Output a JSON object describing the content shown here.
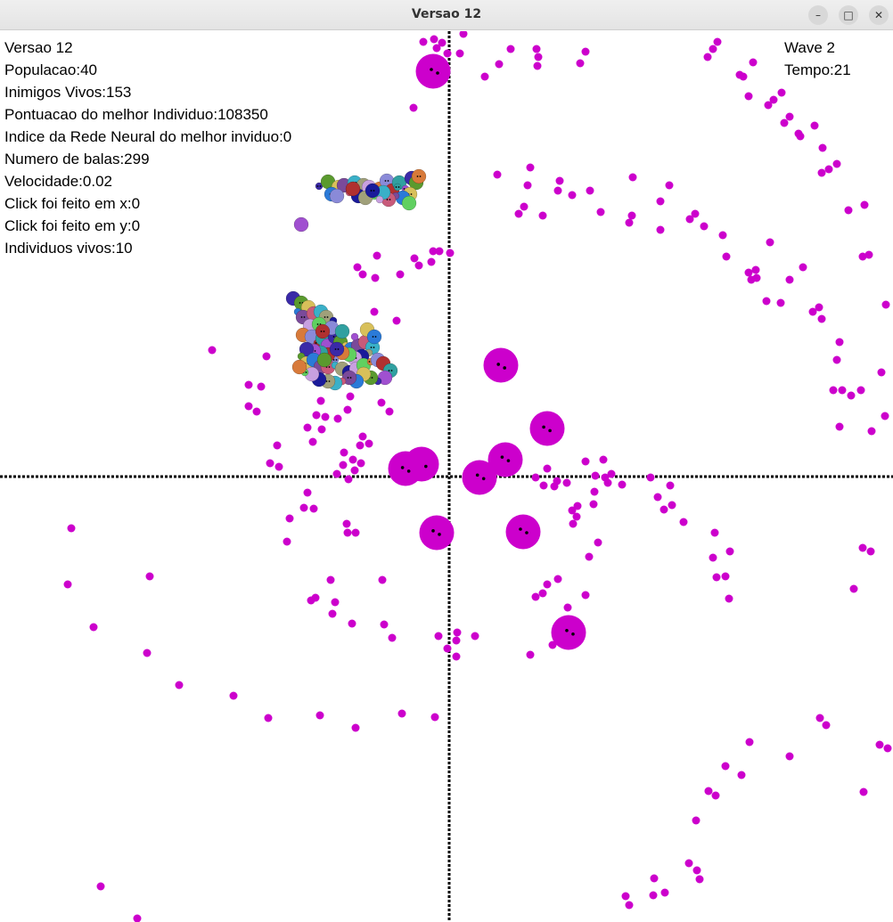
{
  "window": {
    "title": "Versao 12"
  },
  "hud_left": [
    "Versao 12",
    "Populacao:40",
    "Inimigos Vivos:153",
    "Pontuacao do melhor Individuo:108350",
    "Indice da Rede Neural do melhor inviduo:0",
    "Numero de balas:299",
    "Velocidade:0.02",
    "Click foi feito em x:0",
    "Click foi feito em y:0",
    "Individuos vivos:10"
  ],
  "hud_right": {
    "wave": "Wave 2",
    "tempo": "Tempo:21"
  },
  "colors": {
    "enemy": "#cc00cc",
    "axis": "#000000",
    "individuals": [
      "#3a2aa8",
      "#5a9a2e",
      "#d8c05a",
      "#2a7ad8",
      "#7a4a9a",
      "#c85a7a",
      "#3ab0c8",
      "#a0a07a",
      "#1a1a9a",
      "#c8a0e0",
      "#60d060",
      "#d87a3a",
      "#8a8ad8",
      "#b03030",
      "#30a0a0",
      "#a050d0"
    ]
  },
  "big_enemies": [
    [
      486,
      80
    ],
    [
      562,
      410
    ],
    [
      614,
      481
    ],
    [
      567,
      516
    ],
    [
      538,
      536
    ],
    [
      473,
      521
    ],
    [
      455,
      526
    ],
    [
      490,
      598
    ],
    [
      587,
      597
    ],
    [
      638,
      710
    ]
  ],
  "small_enemies": [
    [
      475,
      47
    ],
    [
      487,
      44
    ],
    [
      490,
      54
    ],
    [
      496,
      48
    ],
    [
      502,
      60
    ],
    [
      520,
      38
    ],
    [
      516,
      60
    ],
    [
      573,
      55
    ],
    [
      602,
      55
    ],
    [
      604,
      64
    ],
    [
      657,
      58
    ],
    [
      651,
      71
    ],
    [
      603,
      74
    ],
    [
      560,
      72
    ],
    [
      544,
      86
    ],
    [
      805,
      47
    ],
    [
      794,
      64
    ],
    [
      800,
      55
    ],
    [
      845,
      70
    ],
    [
      830,
      84
    ],
    [
      834,
      86
    ],
    [
      877,
      104
    ],
    [
      868,
      112
    ],
    [
      862,
      118
    ],
    [
      840,
      108
    ],
    [
      886,
      131
    ],
    [
      880,
      138
    ],
    [
      896,
      150
    ],
    [
      914,
      141
    ],
    [
      898,
      153
    ],
    [
      923,
      166
    ],
    [
      939,
      184
    ],
    [
      930,
      190
    ],
    [
      922,
      194
    ],
    [
      464,
      121
    ],
    [
      558,
      196
    ],
    [
      595,
      188
    ],
    [
      592,
      208
    ],
    [
      628,
      203
    ],
    [
      626,
      214
    ],
    [
      642,
      219
    ],
    [
      662,
      214
    ],
    [
      710,
      199
    ],
    [
      751,
      208
    ],
    [
      741,
      226
    ],
    [
      709,
      242
    ],
    [
      706,
      250
    ],
    [
      674,
      238
    ],
    [
      609,
      242
    ],
    [
      588,
      232
    ],
    [
      582,
      240
    ],
    [
      741,
      258
    ],
    [
      774,
      246
    ],
    [
      780,
      240
    ],
    [
      790,
      254
    ],
    [
      811,
      264
    ],
    [
      864,
      272
    ],
    [
      815,
      288
    ],
    [
      840,
      306
    ],
    [
      848,
      303
    ],
    [
      849,
      312
    ],
    [
      843,
      314
    ],
    [
      886,
      314
    ],
    [
      901,
      300
    ],
    [
      860,
      338
    ],
    [
      876,
      340
    ],
    [
      912,
      350
    ],
    [
      919,
      345
    ],
    [
      922,
      358
    ],
    [
      942,
      384
    ],
    [
      939,
      404
    ],
    [
      952,
      236
    ],
    [
      970,
      230
    ],
    [
      968,
      288
    ],
    [
      975,
      286
    ],
    [
      994,
      342
    ],
    [
      989,
      418
    ],
    [
      966,
      438
    ],
    [
      945,
      438
    ],
    [
      935,
      438
    ],
    [
      955,
      444
    ],
    [
      993,
      467
    ],
    [
      978,
      484
    ],
    [
      942,
      479
    ],
    [
      486,
      282
    ],
    [
      493,
      282
    ],
    [
      505,
      284
    ],
    [
      465,
      290
    ],
    [
      470,
      298
    ],
    [
      484,
      294
    ],
    [
      423,
      287
    ],
    [
      401,
      300
    ],
    [
      407,
      308
    ],
    [
      421,
      312
    ],
    [
      449,
      308
    ],
    [
      420,
      350
    ],
    [
      445,
      360
    ],
    [
      238,
      393
    ],
    [
      299,
      400
    ],
    [
      279,
      432
    ],
    [
      293,
      434
    ],
    [
      279,
      456
    ],
    [
      288,
      462
    ],
    [
      360,
      450
    ],
    [
      355,
      466
    ],
    [
      345,
      480
    ],
    [
      365,
      468
    ],
    [
      379,
      470
    ],
    [
      390,
      460
    ],
    [
      393,
      445
    ],
    [
      428,
      452
    ],
    [
      437,
      462
    ],
    [
      414,
      498
    ],
    [
      407,
      490
    ],
    [
      404,
      500
    ],
    [
      386,
      508
    ],
    [
      396,
      516
    ],
    [
      405,
      520
    ],
    [
      398,
      528
    ],
    [
      385,
      522
    ],
    [
      378,
      532
    ],
    [
      391,
      538
    ],
    [
      361,
      482
    ],
    [
      351,
      496
    ],
    [
      311,
      500
    ],
    [
      303,
      520
    ],
    [
      313,
      524
    ],
    [
      601,
      536
    ],
    [
      614,
      526
    ],
    [
      610,
      545
    ],
    [
      622,
      546
    ],
    [
      625,
      540
    ],
    [
      636,
      542
    ],
    [
      657,
      518
    ],
    [
      677,
      516
    ],
    [
      668,
      534
    ],
    [
      679,
      536
    ],
    [
      686,
      532
    ],
    [
      682,
      542
    ],
    [
      698,
      544
    ],
    [
      730,
      536
    ],
    [
      752,
      545
    ],
    [
      738,
      558
    ],
    [
      745,
      572
    ],
    [
      754,
      567
    ],
    [
      767,
      586
    ],
    [
      667,
      552
    ],
    [
      666,
      566
    ],
    [
      648,
      568
    ],
    [
      642,
      573
    ],
    [
      647,
      580
    ],
    [
      643,
      588
    ],
    [
      671,
      609
    ],
    [
      661,
      625
    ],
    [
      802,
      598
    ],
    [
      819,
      619
    ],
    [
      800,
      626
    ],
    [
      804,
      648
    ],
    [
      814,
      647
    ],
    [
      818,
      672
    ],
    [
      614,
      656
    ],
    [
      626,
      650
    ],
    [
      609,
      666
    ],
    [
      601,
      670
    ],
    [
      657,
      668
    ],
    [
      637,
      682
    ],
    [
      620,
      724
    ],
    [
      595,
      735
    ],
    [
      345,
      553
    ],
    [
      341,
      570
    ],
    [
      352,
      571
    ],
    [
      325,
      582
    ],
    [
      322,
      608
    ],
    [
      389,
      588
    ],
    [
      390,
      598
    ],
    [
      399,
      598
    ],
    [
      80,
      593
    ],
    [
      168,
      647
    ],
    [
      76,
      656
    ],
    [
      371,
      651
    ],
    [
      429,
      651
    ],
    [
      376,
      676
    ],
    [
      354,
      671
    ],
    [
      349,
      674
    ],
    [
      373,
      689
    ],
    [
      105,
      704
    ],
    [
      165,
      733
    ],
    [
      201,
      769
    ],
    [
      262,
      781
    ],
    [
      301,
      806
    ],
    [
      359,
      803
    ],
    [
      399,
      817
    ],
    [
      451,
      801
    ],
    [
      488,
      805
    ],
    [
      395,
      700
    ],
    [
      431,
      701
    ],
    [
      440,
      716
    ],
    [
      492,
      714
    ],
    [
      513,
      710
    ],
    [
      512,
      719
    ],
    [
      533,
      714
    ],
    [
      502,
      728
    ],
    [
      512,
      737
    ],
    [
      968,
      615
    ],
    [
      977,
      619
    ],
    [
      958,
      661
    ],
    [
      920,
      806
    ],
    [
      927,
      814
    ],
    [
      987,
      836
    ],
    [
      996,
      840
    ],
    [
      841,
      833
    ],
    [
      886,
      849
    ],
    [
      814,
      860
    ],
    [
      832,
      870
    ],
    [
      795,
      888
    ],
    [
      803,
      893
    ],
    [
      969,
      889
    ],
    [
      781,
      921
    ],
    [
      773,
      969
    ],
    [
      782,
      977
    ],
    [
      785,
      987
    ],
    [
      734,
      986
    ],
    [
      746,
      1002
    ],
    [
      733,
      1005
    ],
    [
      702,
      1006
    ],
    [
      706,
      1016
    ],
    [
      113,
      995
    ],
    [
      154,
      1031
    ]
  ],
  "cluster_top": [
    [
      358,
      209
    ],
    [
      368,
      204
    ],
    [
      380,
      210
    ],
    [
      372,
      218
    ],
    [
      386,
      208
    ],
    [
      392,
      216
    ],
    [
      398,
      205
    ],
    [
      408,
      208
    ],
    [
      402,
      220
    ],
    [
      414,
      210
    ],
    [
      420,
      220
    ],
    [
      426,
      212
    ],
    [
      434,
      203
    ],
    [
      440,
      214
    ],
    [
      448,
      205
    ],
    [
      455,
      212
    ],
    [
      462,
      200
    ],
    [
      467,
      205
    ],
    [
      460,
      218
    ],
    [
      452,
      222
    ],
    [
      444,
      220
    ],
    [
      436,
      224
    ],
    [
      430,
      216
    ],
    [
      410,
      222
    ],
    [
      418,
      214
    ],
    [
      426,
      224
    ],
    [
      459,
      228
    ],
    [
      470,
      198
    ],
    [
      378,
      220
    ],
    [
      396,
      212
    ],
    [
      446,
      210
    ],
    [
      338,
      252
    ]
  ],
  "cluster_mid": [
    [
      329,
      335
    ],
    [
      338,
      340
    ],
    [
      346,
      345
    ],
    [
      334,
      350
    ],
    [
      340,
      356
    ],
    [
      352,
      352
    ],
    [
      360,
      350
    ],
    [
      366,
      356
    ],
    [
      374,
      360
    ],
    [
      348,
      366
    ],
    [
      358,
      364
    ],
    [
      340,
      376
    ],
    [
      350,
      378
    ],
    [
      356,
      385
    ],
    [
      362,
      380
    ],
    [
      368,
      388
    ],
    [
      376,
      378
    ],
    [
      382,
      384
    ],
    [
      388,
      388
    ],
    [
      394,
      392
    ],
    [
      402,
      388
    ],
    [
      410,
      384
    ],
    [
      418,
      390
    ],
    [
      414,
      396
    ],
    [
      406,
      400
    ],
    [
      398,
      402
    ],
    [
      392,
      398
    ],
    [
      384,
      396
    ],
    [
      376,
      404
    ],
    [
      368,
      398
    ],
    [
      360,
      396
    ],
    [
      352,
      394
    ],
    [
      344,
      392
    ],
    [
      338,
      400
    ],
    [
      344,
      408
    ],
    [
      352,
      404
    ],
    [
      360,
      412
    ],
    [
      368,
      412
    ],
    [
      376,
      410
    ],
    [
      384,
      414
    ],
    [
      392,
      418
    ],
    [
      400,
      414
    ],
    [
      408,
      410
    ],
    [
      416,
      406
    ],
    [
      424,
      404
    ],
    [
      430,
      408
    ],
    [
      438,
      416
    ],
    [
      432,
      424
    ],
    [
      424,
      428
    ],
    [
      416,
      424
    ],
    [
      408,
      420
    ],
    [
      400,
      428
    ],
    [
      392,
      424
    ],
    [
      384,
      428
    ],
    [
      376,
      430
    ],
    [
      368,
      428
    ],
    [
      358,
      426
    ],
    [
      350,
      420
    ],
    [
      342,
      418
    ],
    [
      336,
      412
    ],
    [
      372,
      368
    ],
    [
      362,
      372
    ],
    [
      384,
      372
    ],
    [
      398,
      378
    ],
    [
      378,
      392
    ],
    [
      364,
      404
    ],
    [
      412,
      370
    ],
    [
      420,
      378
    ]
  ]
}
